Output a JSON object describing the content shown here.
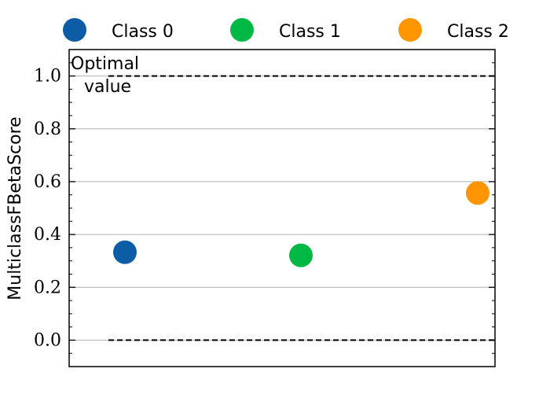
{
  "chart_data": {
    "type": "scatter",
    "title": "",
    "xlabel": "",
    "ylabel": "MulticlassFBetaScore",
    "ylim": [
      -0.1,
      1.1
    ],
    "yticks": [
      0.0,
      0.2,
      0.4,
      0.6,
      0.8,
      1.0
    ],
    "ytick_labels": [
      "0.0",
      "0.2",
      "0.4",
      "0.6",
      "0.8",
      "1.0"
    ],
    "grid": "y",
    "legend_position": "top",
    "series": [
      {
        "name": "Class 0",
        "color": "#0c5da5",
        "value": 0.333
      },
      {
        "name": "Class 1",
        "color": "#00b945",
        "value": 0.321
      },
      {
        "name": "Class 2",
        "color": "#ff9500",
        "value": 0.557
      }
    ],
    "reference_lines": [
      {
        "y": 1.0,
        "style": "dashed"
      },
      {
        "y": 0.0,
        "style": "dashed"
      }
    ],
    "annotation": {
      "line1": "Optimal",
      "line2": "value"
    }
  }
}
